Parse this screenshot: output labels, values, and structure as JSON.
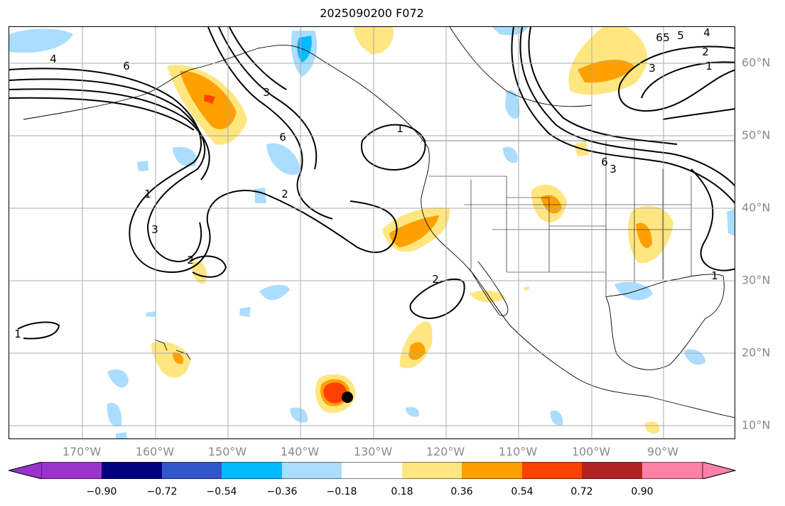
{
  "title": "2025090200 F072",
  "lon_labels": [
    "170°W",
    "160°W",
    "150°W",
    "140°W",
    "130°W",
    "120°W",
    "110°W",
    "100°W",
    "90°W"
  ],
  "lat_labels": [
    "60°N",
    "50°N",
    "40°N",
    "30°N",
    "20°N",
    "10°N"
  ],
  "contour_labels": [
    "4",
    "6",
    "3",
    "6",
    "1",
    "3",
    "2",
    "2",
    "1",
    "2",
    "1",
    "6",
    "3",
    "2",
    "1",
    "3",
    "5",
    "6",
    "1",
    "4",
    "5"
  ],
  "colorbar": {
    "tick_labels": [
      "−0.90",
      "−0.72",
      "−0.54",
      "−0.36",
      "−0.18",
      "0.18",
      "0.36",
      "0.54",
      "0.72",
      "0.90"
    ],
    "colors": [
      "#9933cc",
      "#000080",
      "#3355cc",
      "#00bbff",
      "#aaddff",
      "#ffffff",
      "#ffe680",
      "#ffa000",
      "#ff4000",
      "#b22222",
      "#ff80a8"
    ]
  },
  "colors": {
    "light_blue": "#aaddff",
    "cyan": "#00bbff",
    "yellow": "#ffe680",
    "orange": "#ffa000",
    "red_orange": "#ff4000",
    "contour": "#000000",
    "grid": "#aaaaaa",
    "axis_label": "#8a8a8a"
  },
  "marker": {
    "name": "storm-center",
    "lon": -134,
    "lat": 14
  }
}
